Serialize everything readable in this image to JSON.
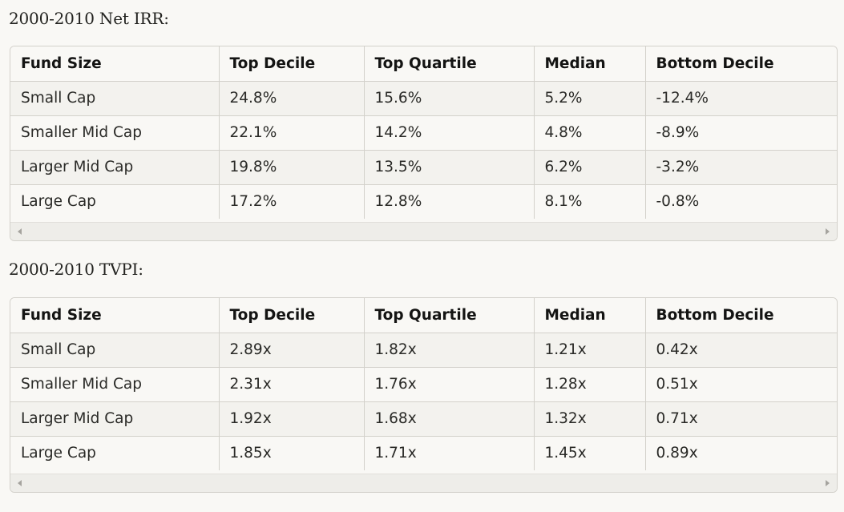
{
  "section_1": {
    "title": "2000-2010 Net IRR:",
    "headers": [
      "Fund Size",
      "Top Decile",
      "Top Quartile",
      "Median",
      "Bottom Decile"
    ],
    "rows": [
      [
        "Small Cap",
        "24.8%",
        "15.6%",
        "5.2%",
        "-12.4%"
      ],
      [
        "Smaller Mid Cap",
        "22.1%",
        "14.2%",
        "4.8%",
        "-8.9%"
      ],
      [
        "Larger Mid Cap",
        "19.8%",
        "13.5%",
        "6.2%",
        "-3.2%"
      ],
      [
        "Large Cap",
        "17.2%",
        "12.8%",
        "8.1%",
        "-0.8%"
      ]
    ]
  },
  "section_2": {
    "title": "2000-2010 TVPI:",
    "headers": [
      "Fund Size",
      "Top Decile",
      "Top Quartile",
      "Median",
      "Bottom Decile"
    ],
    "rows": [
      [
        "Small Cap",
        "2.89x",
        "1.82x",
        "1.21x",
        "0.42x"
      ],
      [
        "Smaller Mid Cap",
        "2.31x",
        "1.76x",
        "1.28x",
        "0.51x"
      ],
      [
        "Larger Mid Cap",
        "1.92x",
        "1.68x",
        "1.32x",
        "0.71x"
      ],
      [
        "Large Cap",
        "1.85x",
        "1.71x",
        "1.45x",
        "0.89x"
      ]
    ]
  },
  "icons": {
    "scroll_left": "chevron-left-icon",
    "scroll_right": "chevron-right-icon"
  }
}
